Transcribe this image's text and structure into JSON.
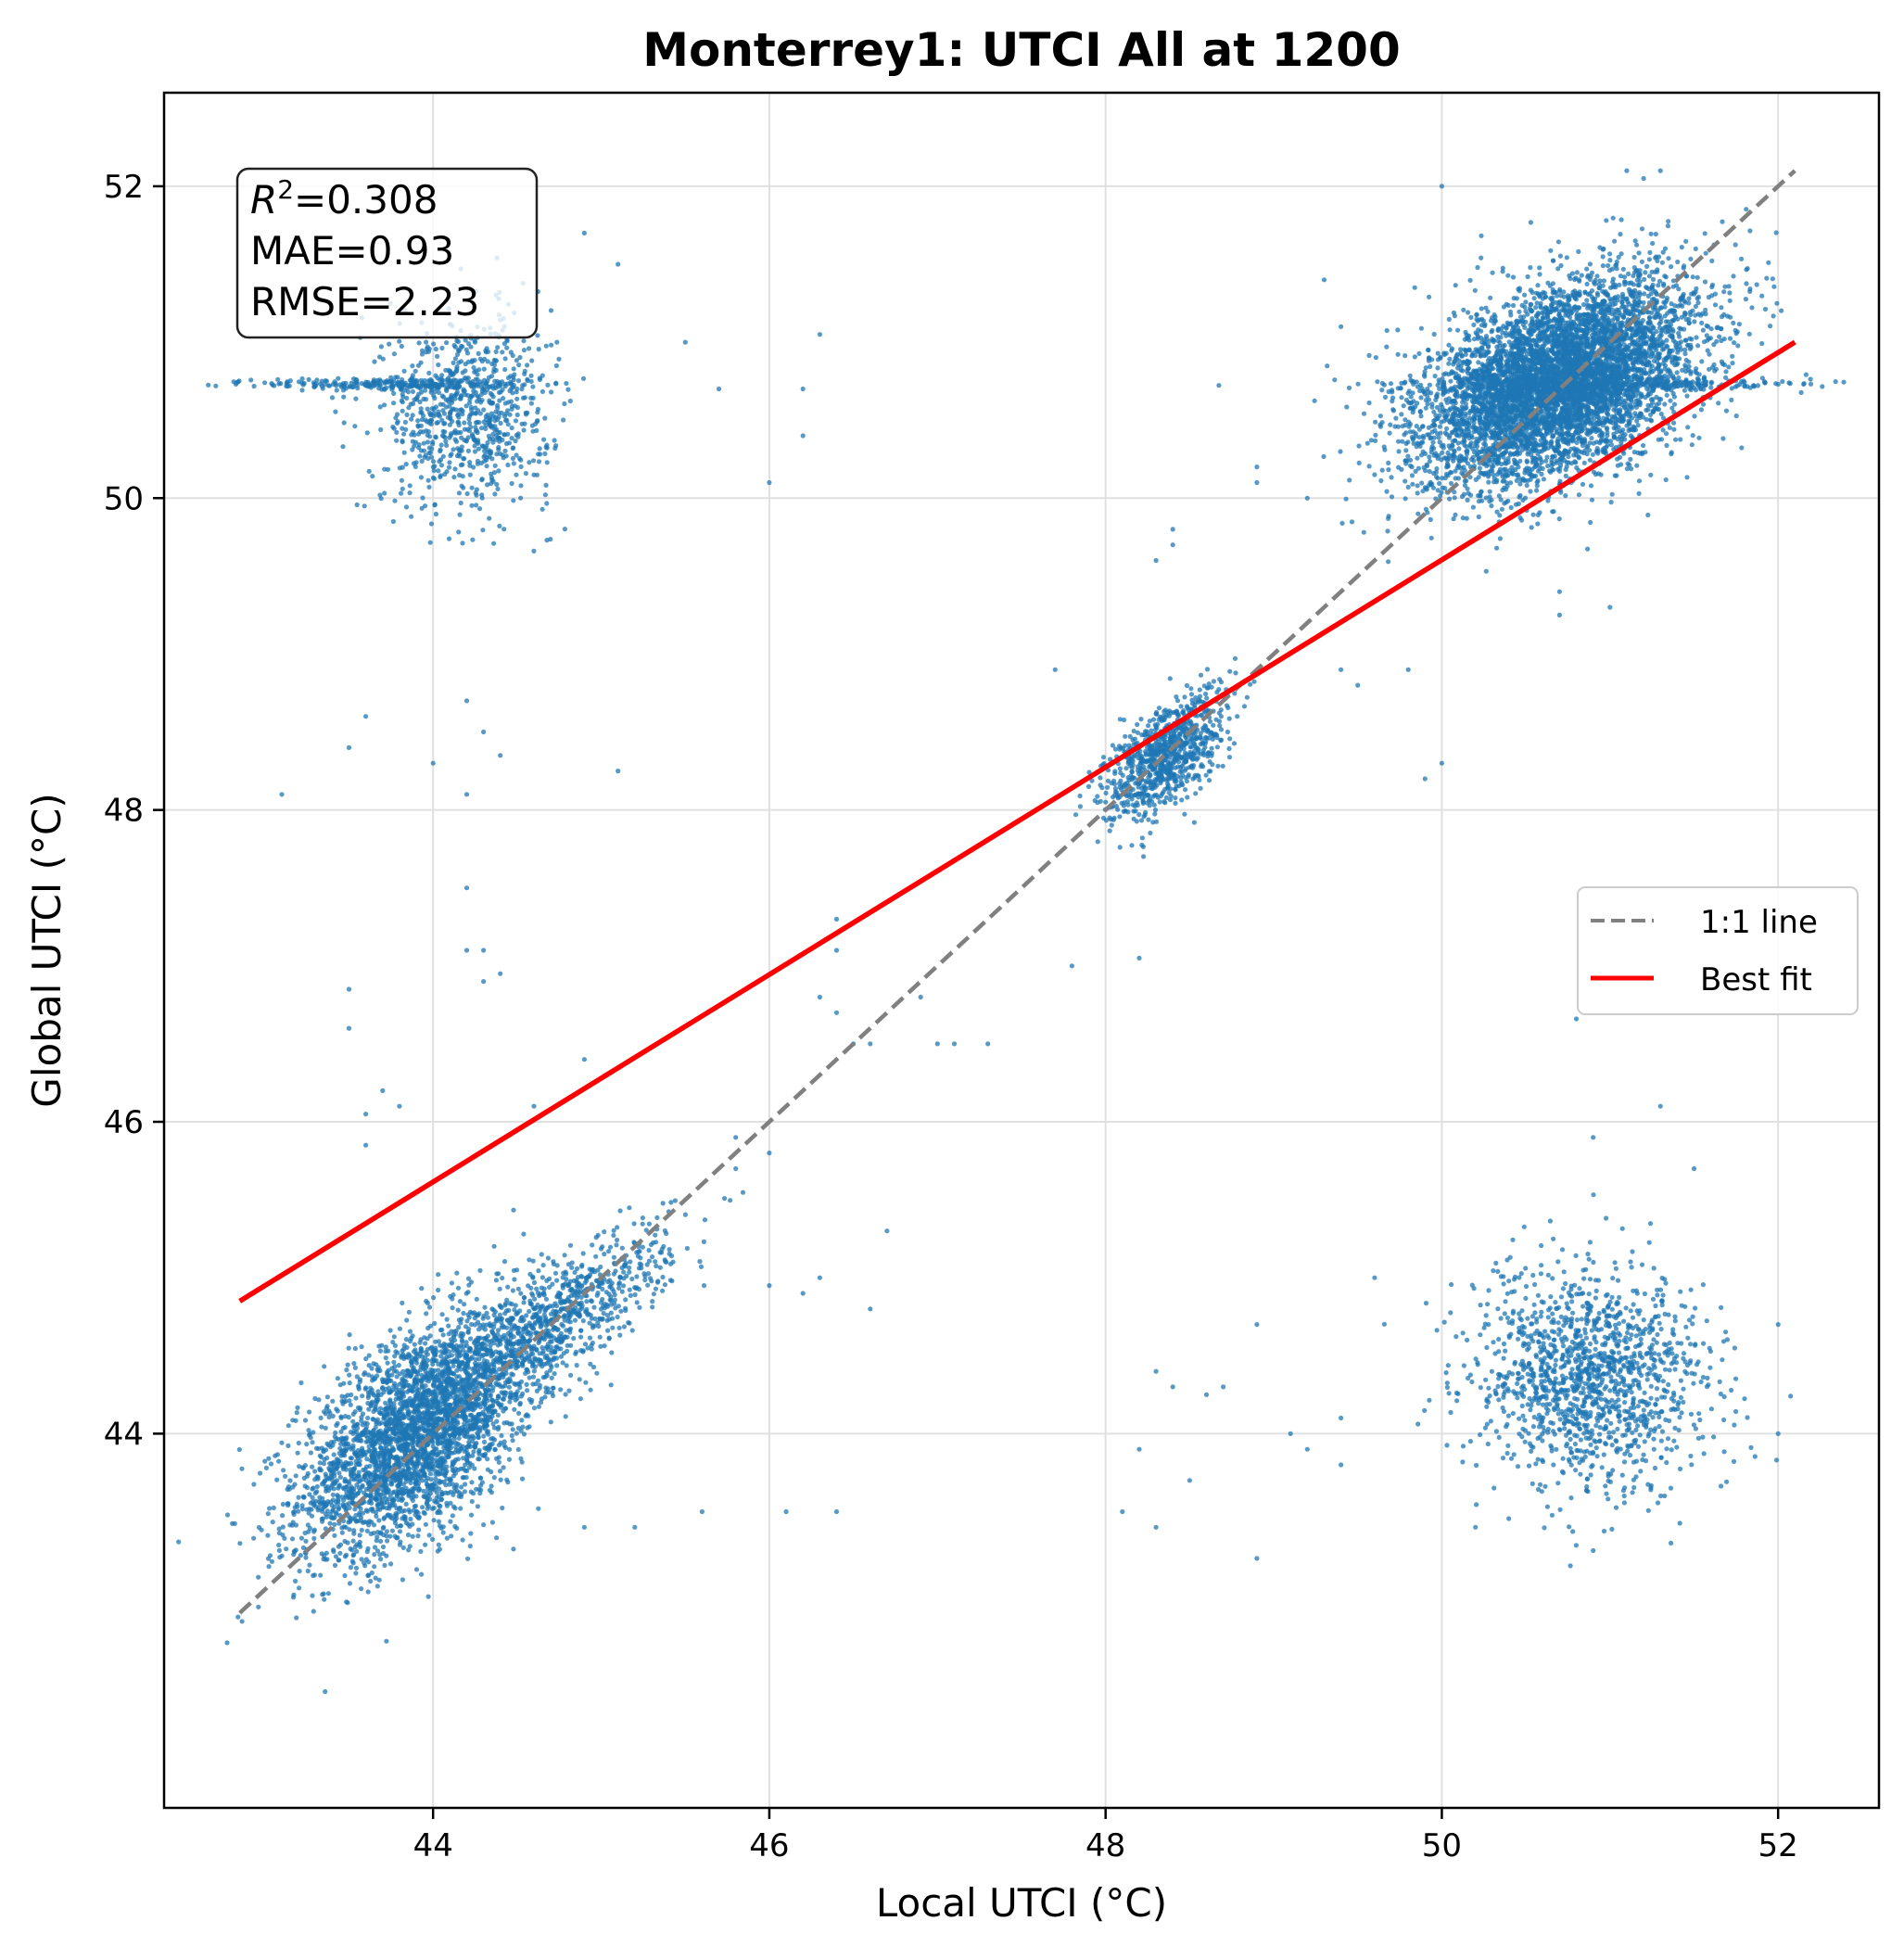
{
  "chart_data": {
    "type": "scatter",
    "title": "Monterrey1: UTCI All at 1200",
    "xlabel": "Local UTCI (°C)",
    "ylabel": "Global UTCI (°C)",
    "xlim": [
      42.4,
      52.6
    ],
    "ylim": [
      41.6,
      52.6
    ],
    "xticks": [
      44,
      46,
      48,
      50,
      52
    ],
    "yticks": [
      44,
      46,
      48,
      50,
      52
    ],
    "grid": true,
    "point_color": "#1f77b4",
    "stats": {
      "r2_symbol": "R",
      "r2_exp": "2",
      "r2_value": "=0.308",
      "mae": "MAE=0.93",
      "rmse": "RMSE=2.23"
    },
    "legend": {
      "position": "center-right",
      "entries": [
        {
          "label": "1:1 line",
          "color": "#808080",
          "style": "dashed"
        },
        {
          "label": "Best fit",
          "color": "#ff0000",
          "style": "solid"
        }
      ]
    },
    "reference_line": {
      "x": [
        42.85,
        52.1
      ],
      "y": [
        42.85,
        52.1
      ],
      "color": "#808080"
    },
    "best_fit_line": {
      "x": [
        42.85,
        52.1
      ],
      "y": [
        44.85,
        51.0
      ],
      "color": "#ff0000"
    },
    "clusters": [
      {
        "name": "low-low",
        "cx": 43.9,
        "cy": 44.0,
        "sx": 0.35,
        "sy": 0.38,
        "n": 3200,
        "corr": 0.55
      },
      {
        "name": "low-low-diag",
        "cx": 44.7,
        "cy": 44.7,
        "sx": 0.35,
        "sy": 0.3,
        "n": 900,
        "corr": 0.8
      },
      {
        "name": "low-high",
        "cx": 44.2,
        "cy": 50.55,
        "sx": 0.25,
        "sy": 0.3,
        "n": 800,
        "corr": 0.0
      },
      {
        "name": "low-high-band",
        "cx": 43.8,
        "cy": 50.73,
        "sx": 0.4,
        "sy": 0.02,
        "n": 250,
        "corr": 0.0
      },
      {
        "name": "mid",
        "cx": 48.35,
        "cy": 48.35,
        "sx": 0.18,
        "sy": 0.2,
        "n": 900,
        "corr": 0.6
      },
      {
        "name": "high-high",
        "cx": 50.7,
        "cy": 50.75,
        "sx": 0.4,
        "sy": 0.32,
        "n": 6000,
        "corr": 0.45
      },
      {
        "name": "high-high-band",
        "cx": 50.9,
        "cy": 50.73,
        "sx": 0.6,
        "sy": 0.02,
        "n": 300,
        "corr": 0.0
      },
      {
        "name": "high-low",
        "cx": 50.9,
        "cy": 44.35,
        "sx": 0.35,
        "sy": 0.35,
        "n": 1400,
        "corr": 0.0
      }
    ],
    "outliers": [
      [
        44.2,
        48.7
      ],
      [
        43.6,
        48.6
      ],
      [
        44.3,
        48.5
      ],
      [
        44.4,
        48.35
      ],
      [
        43.5,
        48.4
      ],
      [
        44.0,
        48.3
      ],
      [
        43.1,
        48.1
      ],
      [
        44.2,
        48.1
      ],
      [
        45.1,
        48.25
      ],
      [
        44.2,
        47.5
      ],
      [
        44.2,
        47.1
      ],
      [
        44.3,
        47.1
      ],
      [
        44.3,
        46.9
      ],
      [
        44.4,
        46.95
      ],
      [
        43.5,
        46.85
      ],
      [
        43.5,
        46.6
      ],
      [
        43.7,
        46.2
      ],
      [
        43.8,
        46.1
      ],
      [
        43.6,
        46.05
      ],
      [
        44.6,
        46.1
      ],
      [
        43.6,
        45.85
      ],
      [
        44.9,
        46.4
      ],
      [
        46.4,
        47.3
      ],
      [
        46.4,
        47.1
      ],
      [
        46.3,
        46.8
      ],
      [
        46.4,
        46.7
      ],
      [
        46.5,
        46.5
      ],
      [
        46.6,
        46.5
      ],
      [
        46.9,
        46.8
      ],
      [
        47.1,
        46.5
      ],
      [
        47.3,
        46.5
      ],
      [
        46.7,
        45.3
      ],
      [
        46.6,
        44.8
      ],
      [
        46.2,
        44.9
      ],
      [
        46.3,
        45.0
      ],
      [
        45.6,
        43.5
      ],
      [
        46.1,
        43.5
      ],
      [
        46.4,
        43.5
      ],
      [
        45.2,
        43.4
      ],
      [
        44.9,
        43.4
      ],
      [
        47.8,
        47.0
      ],
      [
        48.2,
        47.05
      ],
      [
        47.7,
        48.9
      ],
      [
        48.9,
        50.1
      ],
      [
        49.2,
        50.0
      ],
      [
        49.6,
        50.15
      ],
      [
        50.0,
        48.3
      ],
      [
        49.9,
        48.2
      ],
      [
        49.8,
        48.9
      ],
      [
        48.4,
        49.8
      ],
      [
        48.3,
        49.6
      ],
      [
        48.4,
        49.7
      ],
      [
        49.4,
        48.9
      ],
      [
        49.5,
        48.8
      ],
      [
        48.9,
        44.7
      ],
      [
        48.3,
        44.4
      ],
      [
        48.4,
        44.3
      ],
      [
        48.6,
        44.25
      ],
      [
        48.7,
        44.3
      ],
      [
        48.2,
        43.9
      ],
      [
        48.3,
        43.4
      ],
      [
        48.5,
        43.7
      ],
      [
        48.1,
        43.5
      ],
      [
        48.9,
        43.2
      ],
      [
        49.1,
        44.0
      ],
      [
        49.2,
        43.9
      ],
      [
        49.4,
        44.1
      ],
      [
        49.4,
        43.8
      ],
      [
        49.6,
        45.0
      ],
      [
        50.2,
        43.4
      ],
      [
        50.9,
        43.25
      ],
      [
        50.8,
        46.66
      ],
      [
        50.9,
        45.9
      ],
      [
        51.3,
        46.1
      ],
      [
        51.5,
        45.7
      ],
      [
        52.0,
        44.7
      ],
      [
        52.0,
        44.0
      ],
      [
        51.0,
        49.3
      ],
      [
        50.7,
        49.25
      ],
      [
        50.7,
        49.4
      ],
      [
        46.0,
        50.1
      ],
      [
        46.2,
        50.4
      ],
      [
        46.2,
        50.7
      ],
      [
        45.7,
        50.7
      ],
      [
        46.3,
        51.05
      ],
      [
        45.5,
        51.0
      ],
      [
        45.1,
        51.5
      ],
      [
        44.9,
        51.7
      ],
      [
        49.3,
        51.4
      ],
      [
        49.4,
        51.1
      ],
      [
        48.9,
        50.2
      ],
      [
        50.0,
        52.0
      ],
      [
        51.1,
        52.1
      ],
      [
        51.3,
        52.1
      ],
      [
        51.2,
        52.05
      ],
      [
        45.8,
        45.9
      ],
      [
        45.8,
        45.7
      ],
      [
        46.0,
        45.8
      ],
      [
        47.0,
        46.5
      ],
      [
        46.0,
        44.95
      ],
      [
        47.9,
        48.15
      ],
      [
        48.0,
        48.05
      ]
    ]
  }
}
